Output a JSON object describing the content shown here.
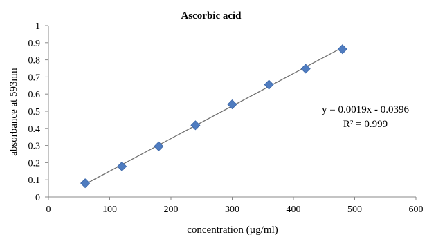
{
  "chart_data": {
    "type": "scatter",
    "title": "Ascorbic acid",
    "xlabel": "concentration  (µg/ml)",
    "ylabel": "absorbance at 593nm",
    "xlim": [
      0,
      600
    ],
    "ylim": [
      0,
      1
    ],
    "xticks": [
      0,
      100,
      200,
      300,
      400,
      500,
      600
    ],
    "yticks": [
      0,
      0.1,
      0.2,
      0.3,
      0.4,
      0.5,
      0.6,
      0.7,
      0.8,
      0.9,
      1
    ],
    "xtick_labels": [
      "0",
      "100",
      "200",
      "300",
      "400",
      "500",
      "600"
    ],
    "ytick_labels": [
      "0",
      "0.1",
      "0.2",
      "0.3",
      "0.4",
      "0.5",
      "0.6",
      "0.7",
      "0.8",
      "0.9",
      "1"
    ],
    "grid": false,
    "legend": "none",
    "series": [
      {
        "marker": "diamond",
        "color": "#4F7CC0",
        "x": [
          60,
          120,
          180,
          240,
          300,
          360,
          420,
          480
        ],
        "y": [
          0.08,
          0.178,
          0.295,
          0.418,
          0.54,
          0.655,
          0.748,
          0.862
        ]
      }
    ],
    "trendline": {
      "type": "linear",
      "slope": 0.0019,
      "intercept": -0.0396,
      "x_range": [
        60,
        480
      ],
      "color": "#707070"
    },
    "annotations": {
      "equation": "y = 0.0019x - 0.0396",
      "r_squared": "R² = 0.999"
    }
  }
}
